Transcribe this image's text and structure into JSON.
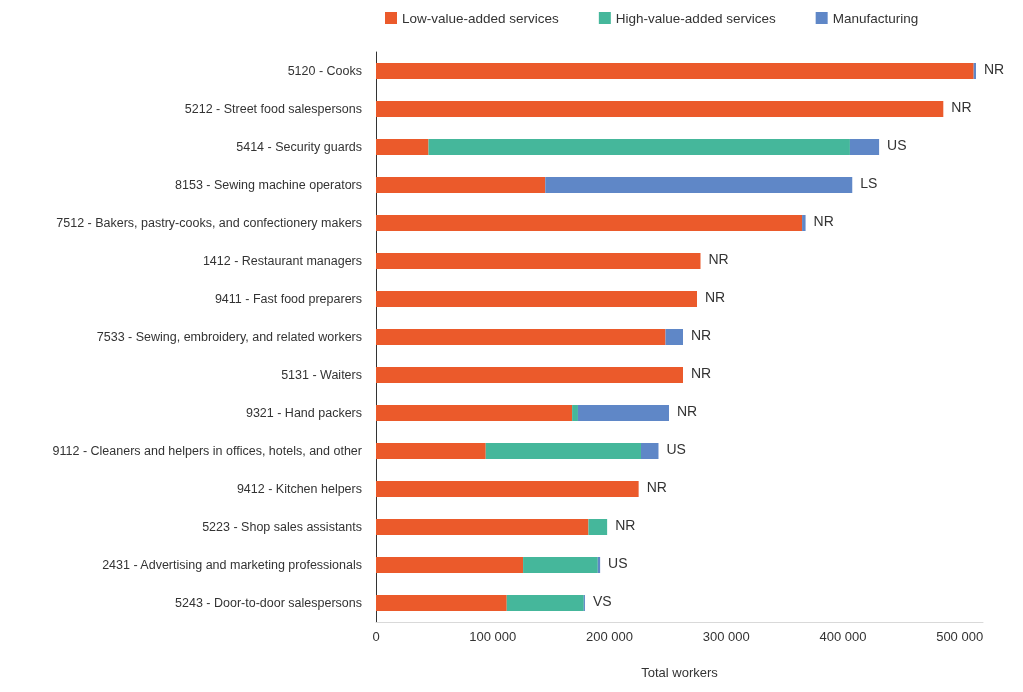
{
  "chart_data": {
    "type": "bar",
    "orientation": "horizontal",
    "stacked": true,
    "xlabel": "Total workers",
    "categories": [
      "5120 - Cooks",
      "5212 - Street food salespersons",
      "5414 - Security guards",
      "8153 - Sewing machine operators",
      "7512 - Bakers, pastry-cooks, and confectionery makers",
      "1412 - Restaurant managers",
      "9411 - Fast food preparers",
      "7533 - Sewing, embroidery, and related workers",
      "5131 - Waiters",
      "9321 - Hand packers",
      "9112 - Cleaners and helpers in offices, hotels, and other",
      "9412 - Kitchen helpers",
      "5223 - Shop sales assistants",
      "2431 - Advertising and marketing professionals",
      "5243 - Door-to-door salespersons"
    ],
    "series": [
      {
        "name": "Low-value-added services",
        "color": "#eb5a2b",
        "values": [
          512000,
          486000,
          45000,
          145000,
          365000,
          278000,
          275000,
          248000,
          263000,
          168000,
          94000,
          225000,
          182000,
          126000,
          112000
        ]
      },
      {
        "name": "High-value-added services",
        "color": "#45b79b",
        "values": [
          0,
          0,
          361000,
          0,
          0,
          0,
          0,
          0,
          0,
          5000,
          133000,
          0,
          16000,
          64000,
          66000
        ]
      },
      {
        "name": "Manufacturing",
        "color": "#5f87c7",
        "values": [
          2000,
          0,
          25000,
          263000,
          3000,
          0,
          0,
          15000,
          0,
          78000,
          15000,
          0,
          0,
          2000,
          1000
        ]
      }
    ],
    "xlim": [
      0,
      520000
    ],
    "xticks": [
      {
        "value": 0,
        "label": "0"
      },
      {
        "value": 100000,
        "label": "100 000"
      },
      {
        "value": 200000,
        "label": "200 000"
      },
      {
        "value": 300000,
        "label": "300 000"
      },
      {
        "value": 400000,
        "label": "400 000"
      },
      {
        "value": 500000,
        "label": "500 000"
      }
    ],
    "grid": false,
    "legend": "top",
    "annotations": [
      {
        "text": "NR",
        "x": 514000,
        "y": "5120 - Cooks"
      },
      {
        "text": "NR",
        "x": 486000,
        "y": "5212 - Street food salespersons"
      },
      {
        "text": "US",
        "x": 431000,
        "y": "5414 - Security guards"
      },
      {
        "text": "LS",
        "x": 408000,
        "y": "8153 - Sewing machine operators"
      },
      {
        "text": "NR",
        "x": 368000,
        "y": "7512 - Bakers, pastry-cooks, and confectionery makers"
      },
      {
        "text": "NR",
        "x": 278000,
        "y": "1412 - Restaurant managers"
      },
      {
        "text": "NR",
        "x": 275000,
        "y": "9411 - Fast food preparers"
      },
      {
        "text": "NR",
        "x": 263000,
        "y": "7533 - Sewing, embroidery, and related workers"
      },
      {
        "text": "NR",
        "x": 263000,
        "y": "5131 - Waiters"
      },
      {
        "text": "NR",
        "x": 251000,
        "y": "9321 - Hand packers"
      },
      {
        "text": "US",
        "x": 242000,
        "y": "9112 - Cleaners and helpers in offices, hotels, and other"
      },
      {
        "text": "NR",
        "x": 225000,
        "y": "9412 - Kitchen helpers"
      },
      {
        "text": "NR",
        "x": 198000,
        "y": "5223 - Shop sales assistants"
      },
      {
        "text": "US",
        "x": 192000,
        "y": "2431 - Advertising and marketing professionals"
      },
      {
        "text": "VS",
        "x": 179000,
        "y": "5243 - Door-to-door salespersons"
      }
    ]
  }
}
